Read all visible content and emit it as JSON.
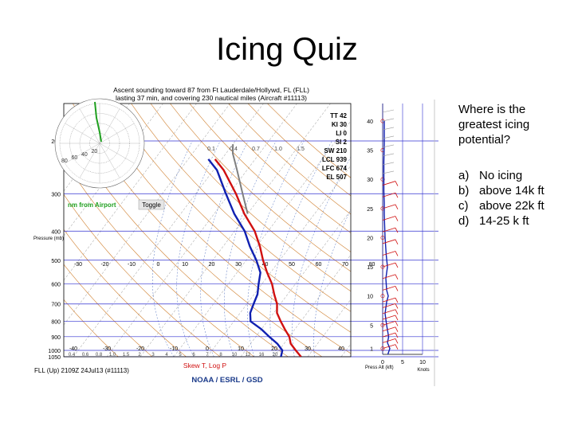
{
  "slide": {
    "title": "Icing Quiz"
  },
  "question": {
    "text": "Where is the greatest icing potential?",
    "options": [
      {
        "letter": "a)",
        "text": "No icing"
      },
      {
        "letter": "b)",
        "text": "above 14k ft"
      },
      {
        "letter": "c)",
        "text": "above 22k ft"
      },
      {
        "letter": "d)",
        "text": "14-25 k ft"
      }
    ]
  },
  "colors": {
    "temperature": "#d01010",
    "dewpoint": "#1020b0",
    "parcel": "#808080",
    "hodograph": "#20a020",
    "isobar": "#3030d0",
    "isotherm": "#b0b0b0",
    "dry_adiabat": "#d08030",
    "moist_adiabat": "#5070c0",
    "wind_barbs": "#d01010"
  },
  "chart_data": [
    {
      "type": "line",
      "title": "Ascent sounding toward 87 from Ft Lauderdale/Hollywd, FL (FLL)",
      "subtitle": "lasting 37 min, and covering 230 nautical miles (Aircraft #11113)",
      "xlabel": "Skew T, Log P",
      "ylabel": "Pressure (mb)",
      "footer": "FLL (Up) 2109Z 24Jul13 (#11113)",
      "credit": "NOAA / ESRL / GSD",
      "y_scale": "log",
      "ylim": [
        1050,
        150
      ],
      "xlim": [
        -40,
        40
      ],
      "pressure_ticks": [
        200,
        300,
        400,
        500,
        600,
        700,
        800,
        900,
        1000,
        1050
      ],
      "temperature_ticks": [
        -40,
        -30,
        -20,
        -10,
        0,
        10,
        20,
        30,
        40
      ],
      "skewed_isotherm_labels": [
        -30,
        -20,
        -10,
        0,
        10,
        20,
        30,
        40,
        50,
        60,
        70,
        80
      ],
      "bottom_extra_ticks": [
        "0.4",
        "0.6",
        "0.8",
        "1.0",
        "1.5",
        "2",
        "3",
        "4",
        "5",
        "6",
        "7",
        "8",
        "10",
        "12",
        "16",
        "20"
      ],
      "mixing_ratio_labels": [
        "0.1",
        "0.4",
        "0.7",
        "1.0",
        "1.5"
      ],
      "indices": [
        {
          "name": "TT",
          "value": "42"
        },
        {
          "name": "KI",
          "value": "30"
        },
        {
          "name": "LI",
          "value": "0"
        },
        {
          "name": "SI",
          "value": "2"
        },
        {
          "name": "SW",
          "value": "210"
        },
        {
          "name": "LCL",
          "value": "939"
        },
        {
          "name": "LFC",
          "value": "674"
        },
        {
          "name": "EL",
          "value": "507"
        }
      ],
      "hodograph": {
        "rings": [
          20,
          40,
          60,
          80
        ],
        "units_label": "nm from Airport",
        "toggle_label": "Toggle"
      },
      "series": [
        {
          "name": "Temperature",
          "color": "#d01010",
          "points": [
            {
              "p": 1050,
              "t": 28
            },
            {
              "p": 1000,
              "t": 25
            },
            {
              "p": 950,
              "t": 22
            },
            {
              "p": 900,
              "t": 20
            },
            {
              "p": 850,
              "t": 17
            },
            {
              "p": 800,
              "t": 14
            },
            {
              "p": 750,
              "t": 11
            },
            {
              "p": 700,
              "t": 9
            },
            {
              "p": 650,
              "t": 6
            },
            {
              "p": 600,
              "t": 3
            },
            {
              "p": 550,
              "t": -1
            },
            {
              "p": 500,
              "t": -5
            },
            {
              "p": 450,
              "t": -9
            },
            {
              "p": 400,
              "t": -14
            },
            {
              "p": 350,
              "t": -21
            },
            {
              "p": 300,
              "t": -28
            },
            {
              "p": 250,
              "t": -37
            },
            {
              "p": 230,
              "t": -42
            }
          ]
        },
        {
          "name": "Dewpoint",
          "color": "#1020b0",
          "points": [
            {
              "p": 1050,
              "t": 22
            },
            {
              "p": 1000,
              "t": 21
            },
            {
              "p": 950,
              "t": 18
            },
            {
              "p": 900,
              "t": 14
            },
            {
              "p": 850,
              "t": 10
            },
            {
              "p": 800,
              "t": 5
            },
            {
              "p": 750,
              "t": 3
            },
            {
              "p": 700,
              "t": 2
            },
            {
              "p": 650,
              "t": 1
            },
            {
              "p": 600,
              "t": -1
            },
            {
              "p": 550,
              "t": -3
            },
            {
              "p": 500,
              "t": -7
            },
            {
              "p": 450,
              "t": -12
            },
            {
              "p": 400,
              "t": -17
            },
            {
              "p": 350,
              "t": -24
            },
            {
              "p": 300,
              "t": -31
            },
            {
              "p": 250,
              "t": -39
            },
            {
              "p": 230,
              "t": -44
            }
          ]
        },
        {
          "name": "Parcel",
          "color": "#808080",
          "points": [
            {
              "p": 350,
              "t": -20
            },
            {
              "p": 300,
              "t": -26
            },
            {
              "p": 250,
              "t": -33
            },
            {
              "p": 220,
              "t": -38
            },
            {
              "p": 205,
              "t": -40
            }
          ]
        }
      ]
    },
    {
      "type": "line",
      "title": "",
      "xlabel": "Knots",
      "ylabel": "Press Alt (kft)",
      "xlim": [
        0,
        10
      ],
      "ylim": [
        0,
        43
      ],
      "altitude_ticks": [
        1,
        5,
        10,
        15,
        20,
        25,
        30,
        35,
        40
      ],
      "speed_ticks": [
        0,
        5,
        10
      ],
      "series": [
        {
          "name": "Wind speed",
          "color": "#1020b0",
          "points": [
            {
              "alt": 0,
              "v": 1.3
            },
            {
              "alt": 1,
              "v": 1.8
            },
            {
              "alt": 2,
              "v": 1.2
            },
            {
              "alt": 3,
              "v": 1.5
            },
            {
              "alt": 5,
              "v": 1.0
            },
            {
              "alt": 7,
              "v": 0.6
            },
            {
              "alt": 9,
              "v": 1.0
            },
            {
              "alt": 10,
              "v": 1.4
            },
            {
              "alt": 11,
              "v": 1.0
            },
            {
              "alt": 13,
              "v": 0.8
            },
            {
              "alt": 15,
              "v": 1.2
            },
            {
              "alt": 17,
              "v": 0.9
            },
            {
              "alt": 20,
              "v": 0.6
            },
            {
              "alt": 22,
              "v": 0.5
            },
            {
              "alt": 24,
              "v": 0.4
            },
            {
              "alt": 26,
              "v": 0.4
            },
            {
              "alt": 28,
              "v": 0.3
            },
            {
              "alt": 30,
              "v": 0.3
            },
            {
              "alt": 33,
              "v": 0.3
            },
            {
              "alt": 36,
              "v": 0.4
            },
            {
              "alt": 40,
              "v": 0.4
            }
          ]
        },
        {
          "name": "Wind barbs",
          "color": "#d01010",
          "points": [
            {
              "alt": 1,
              "v": 0
            },
            {
              "alt": 2,
              "v": 0
            },
            {
              "alt": 3,
              "v": 0
            },
            {
              "alt": 4,
              "v": 0
            },
            {
              "alt": 5,
              "v": 0
            },
            {
              "alt": 6,
              "v": 0
            },
            {
              "alt": 7,
              "v": 0
            },
            {
              "alt": 8,
              "v": 0
            },
            {
              "alt": 9,
              "v": 0
            },
            {
              "alt": 11,
              "v": 0
            },
            {
              "alt": 13,
              "v": 0
            },
            {
              "alt": 15,
              "v": 0
            },
            {
              "alt": 17,
              "v": 0
            },
            {
              "alt": 19,
              "v": 0
            },
            {
              "alt": 21,
              "v": 0
            },
            {
              "alt": 23,
              "v": 0
            },
            {
              "alt": 25,
              "v": 0
            },
            {
              "alt": 27,
              "v": 0
            },
            {
              "alt": 29,
              "v": 0
            }
          ]
        }
      ]
    }
  ]
}
